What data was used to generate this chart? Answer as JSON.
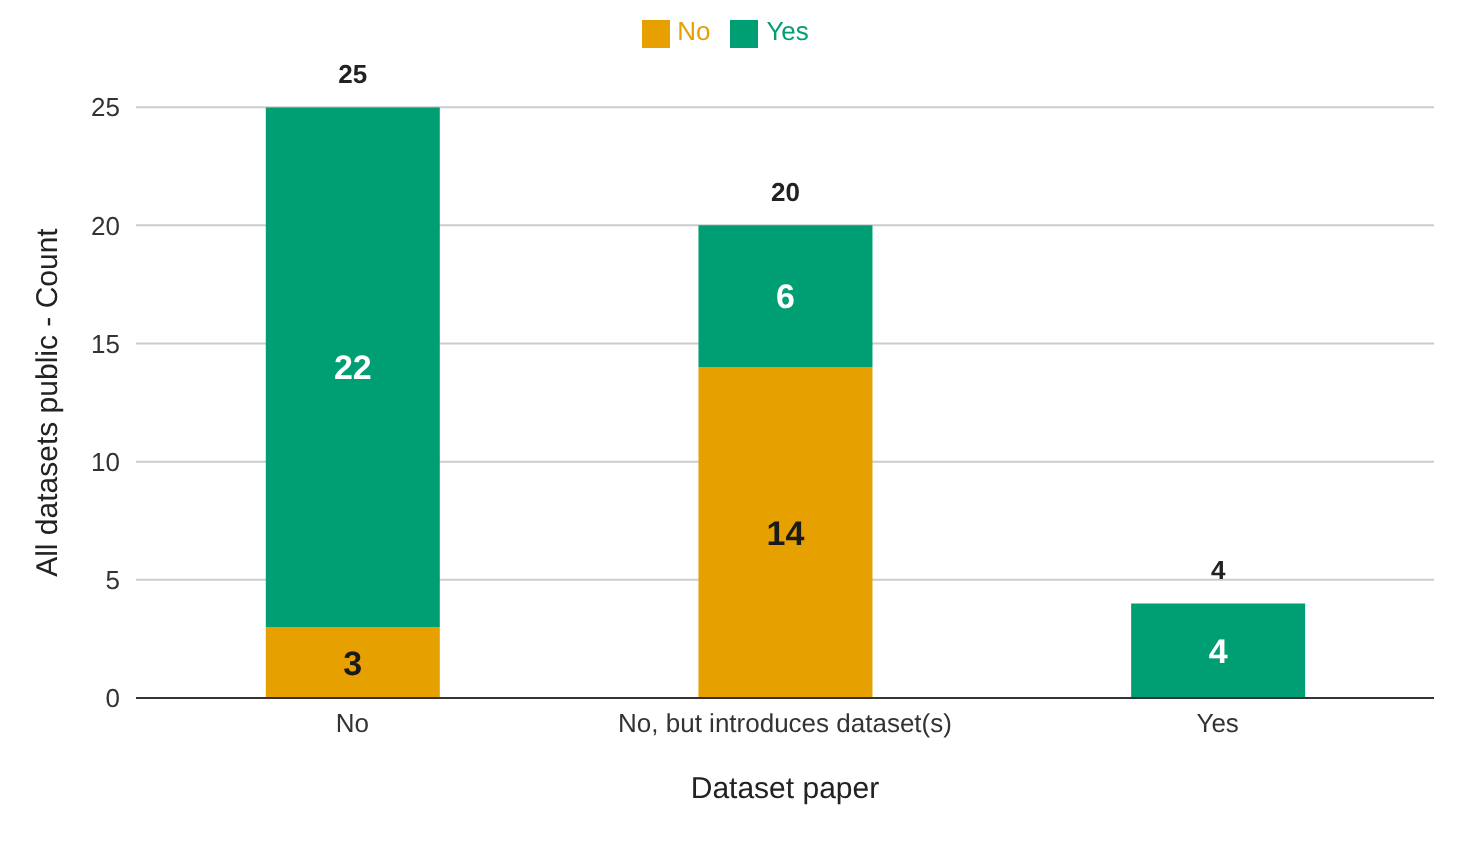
{
  "chart_data": {
    "type": "bar",
    "stacked": true,
    "xlabel": "Dataset paper",
    "ylabel": "All datasets public - Count",
    "categories": [
      "No",
      "No, but introduces dataset(s)",
      "Yes"
    ],
    "series": [
      {
        "name": "No",
        "color": "#e6a000",
        "values": [
          3,
          14,
          null
        ]
      },
      {
        "name": "Yes",
        "color": "#009e73",
        "values": [
          22,
          6,
          4
        ]
      }
    ],
    "ylim": [
      0,
      25
    ],
    "yticks": [
      0,
      5,
      10,
      15,
      20,
      25
    ],
    "grid": "y",
    "legend": "top",
    "data_labels": true,
    "totals": [
      "25",
      "20",
      "4"
    ]
  }
}
